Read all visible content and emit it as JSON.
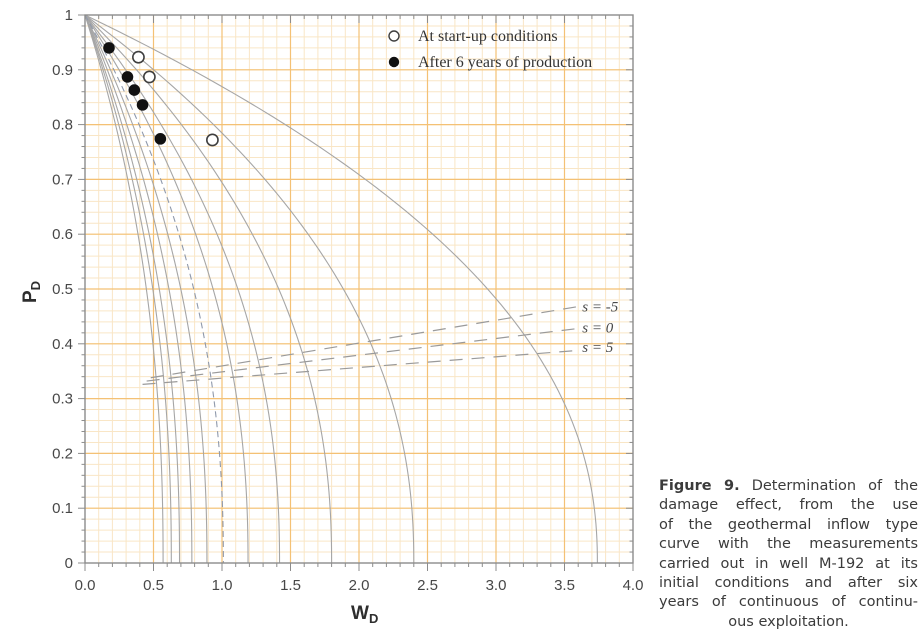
{
  "colors": {
    "grid_minor": "#f9e6c6",
    "grid_major": "#f4c175",
    "axis": "#8c8c8c",
    "curve": "#a6a6a6",
    "curve_dashed": "#8f99ab",
    "skin_line": "#9a9a9a",
    "tick_text": "#474747",
    "axis_title": "#2e2e2e",
    "legend_text": "#333333",
    "skin_text": "#4a4a4a",
    "marker_stroke": "#3f3f3f",
    "marker_fill": "#111111"
  },
  "chart_data": {
    "type": "line",
    "title": "",
    "xlabel": "W",
    "xlabel_sub": "D",
    "ylabel": "P",
    "ylabel_sub": "D",
    "xlim": [
      0,
      4
    ],
    "ylim": [
      0,
      1
    ],
    "x_tick_values": [
      0,
      0.5,
      1,
      1.5,
      2,
      2.5,
      3,
      3.5,
      4
    ],
    "x_tick_labels": [
      "0.0",
      "0.5",
      "1.0",
      "1.5",
      "2.0",
      "2.5",
      "3.0",
      "3.5",
      "4.0"
    ],
    "y_tick_values": [
      0,
      0.1,
      0.2,
      0.3,
      0.4,
      0.5,
      0.6,
      0.7,
      0.8,
      0.9,
      1
    ],
    "y_tick_labels": [
      "0",
      "0.1",
      "0.2",
      "0.3",
      "0.4",
      "0.5",
      "0.6",
      "0.7",
      "0.8",
      "0.9",
      "1"
    ],
    "grid": {
      "x_minor": 0.1,
      "x_major": 0.5,
      "y_minor": 0.02,
      "y_major": 0.1,
      "on": true
    },
    "type_curves": {
      "description": "fan of inflow type curves from (0,1) to (wmax,0), P=(1-W/wmax)^exponent",
      "exponent": 0.45,
      "solid_wmax": [
        0.57,
        0.63,
        0.69,
        0.78,
        0.89,
        1.19,
        1.42,
        1.8,
        2.4,
        3.74
      ],
      "dashed_wmax": [
        1.01
      ]
    },
    "skin_lines": [
      {
        "label": "s = -5",
        "x1": 0.48,
        "y1": 0.338,
        "x2": 3.6,
        "y2": 0.468,
        "label_x": 3.63,
        "label_y": 0.468
      },
      {
        "label": "s = 0",
        "x1": 0.45,
        "y1": 0.332,
        "x2": 3.6,
        "y2": 0.428,
        "label_x": 3.63,
        "label_y": 0.43
      },
      {
        "label": "s = 5",
        "x1": 0.42,
        "y1": 0.326,
        "x2": 3.6,
        "y2": 0.388,
        "label_x": 3.63,
        "label_y": 0.394
      }
    ],
    "series": [
      {
        "name": "At start-up conditions",
        "marker": "open",
        "points": [
          [
            0.39,
            0.923
          ],
          [
            0.47,
            0.887
          ],
          [
            0.93,
            0.772
          ]
        ]
      },
      {
        "name": "After 6 years of production",
        "marker": "filled",
        "points": [
          [
            0.175,
            0.94
          ],
          [
            0.31,
            0.887
          ],
          [
            0.36,
            0.863
          ],
          [
            0.42,
            0.836
          ],
          [
            0.55,
            0.774
          ]
        ]
      }
    ],
    "legend": {
      "position": "top-center-right",
      "border": false
    }
  },
  "caption": {
    "bold": "Figure 9.",
    "line0_rest": "Determination of the",
    "lines": [
      "damage effect, from the use",
      "of the geothermal inflow type",
      "curve with the measurements",
      "carried out in well M-192 at its",
      "initial conditions and after six",
      "years of continuous of continu-",
      "ous exploitation."
    ]
  }
}
